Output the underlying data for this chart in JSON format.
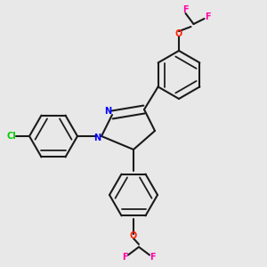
{
  "background_color": "#e8e8e8",
  "bond_color": "#1a1a1a",
  "atom_colors": {
    "N": "#0000ff",
    "O": "#ff2200",
    "F": "#ff00aa",
    "Cl": "#00cc00",
    "C": "#1a1a1a"
  },
  "figsize": [
    3.0,
    3.0
  ],
  "dpi": 100
}
